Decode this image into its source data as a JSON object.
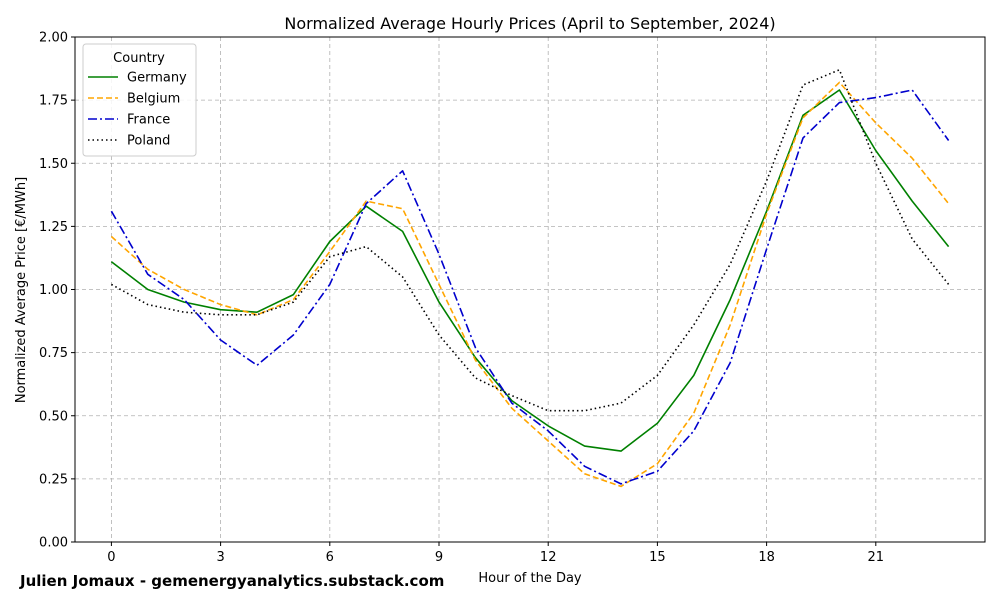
{
  "chart_data": {
    "type": "line",
    "title": "Normalized Average Hourly Prices (April to September, 2024)",
    "xlabel": "Hour of the Day",
    "ylabel": "Normalized Average Price [€/MWh]",
    "xlim": [
      -1,
      24
    ],
    "ylim": [
      0,
      2.0
    ],
    "xticks": [
      0,
      3,
      6,
      9,
      12,
      15,
      18,
      21
    ],
    "yticks": [
      0,
      0.25,
      0.5,
      0.75,
      1.0,
      1.25,
      1.5,
      1.75,
      2.0
    ],
    "ytick_labels": [
      "0.00",
      "0.25",
      "0.50",
      "0.75",
      "1.00",
      "1.25",
      "1.50",
      "1.75",
      "2.00"
    ],
    "grid": true,
    "legend": {
      "title": "Country",
      "placement": "top-left"
    },
    "x": [
      0,
      1,
      2,
      3,
      4,
      5,
      6,
      7,
      8,
      9,
      10,
      11,
      12,
      13,
      14,
      15,
      16,
      17,
      18,
      19,
      20,
      21,
      22,
      23
    ],
    "series": [
      {
        "name": "Germany",
        "color": "#008000",
        "style": "solid",
        "values": [
          1.11,
          1.0,
          0.95,
          0.92,
          0.91,
          0.98,
          1.19,
          1.33,
          1.23,
          0.95,
          0.73,
          0.56,
          0.46,
          0.38,
          0.36,
          0.47,
          0.66,
          0.96,
          1.31,
          1.69,
          1.79,
          1.55,
          1.35,
          1.17
        ]
      },
      {
        "name": "Belgium",
        "color": "#ffa500",
        "style": "dashed",
        "values": [
          1.21,
          1.08,
          1.0,
          0.94,
          0.9,
          0.96,
          1.15,
          1.35,
          1.32,
          1.02,
          0.72,
          0.53,
          0.4,
          0.27,
          0.22,
          0.31,
          0.51,
          0.86,
          1.3,
          1.68,
          1.82,
          1.66,
          1.52,
          1.34
        ]
      },
      {
        "name": "France",
        "color": "#0000cd",
        "style": "dashdot",
        "values": [
          1.31,
          1.06,
          0.96,
          0.8,
          0.7,
          0.82,
          1.02,
          1.34,
          1.47,
          1.14,
          0.77,
          0.55,
          0.44,
          0.3,
          0.23,
          0.28,
          0.44,
          0.71,
          1.16,
          1.6,
          1.74,
          1.76,
          1.79,
          1.59
        ]
      },
      {
        "name": "Poland",
        "color": "#000000",
        "style": "dotted",
        "values": [
          1.02,
          0.94,
          0.91,
          0.9,
          0.9,
          0.95,
          1.13,
          1.17,
          1.05,
          0.82,
          0.65,
          0.58,
          0.52,
          0.52,
          0.55,
          0.66,
          0.86,
          1.1,
          1.43,
          1.81,
          1.87,
          1.5,
          1.2,
          1.02
        ]
      }
    ]
  },
  "credit": "Julien Jomaux - gemenergyanalytics.substack.com"
}
